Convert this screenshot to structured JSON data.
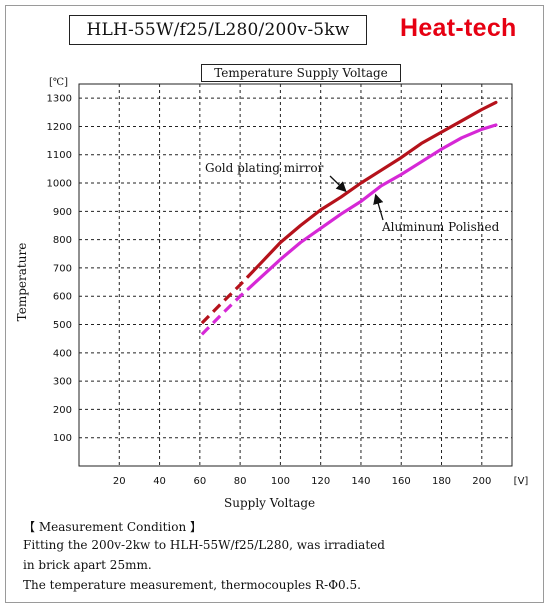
{
  "header": {
    "model": "HLH-55W/f25/L280/200v-5kw",
    "brand": "Heat-tech"
  },
  "chart_data": {
    "type": "line",
    "title": "Temperature Supply Voltage",
    "xlabel": "Supply Voltage",
    "ylabel": "Temperature",
    "y_unit": "[℃]",
    "x_unit": "[V]",
    "xlim": [
      0,
      215
    ],
    "ylim": [
      0,
      1350
    ],
    "x_ticks": [
      20,
      40,
      60,
      80,
      100,
      120,
      140,
      160,
      180,
      200
    ],
    "y_ticks": [
      100,
      200,
      300,
      400,
      500,
      600,
      700,
      800,
      900,
      1000,
      1100,
      1200,
      1300
    ],
    "grid": true,
    "series": [
      {
        "name": "Gold plating mirror",
        "color": "#b5121b",
        "dashed_until_x": 84,
        "x": [
          61,
          70,
          80,
          90,
          100,
          110,
          120,
          130,
          140,
          150,
          160,
          170,
          180,
          190,
          200,
          207
        ],
        "y": [
          505,
          570,
          640,
          715,
          790,
          850,
          905,
          950,
          1000,
          1045,
          1090,
          1140,
          1180,
          1220,
          1260,
          1285
        ]
      },
      {
        "name": "Aluminum Polished",
        "color": "#d628d6",
        "dashed_until_x": 84,
        "x": [
          61,
          70,
          80,
          90,
          100,
          110,
          120,
          130,
          140,
          150,
          160,
          170,
          180,
          190,
          200,
          207
        ],
        "y": [
          465,
          530,
          600,
          665,
          730,
          790,
          840,
          890,
          935,
          990,
          1030,
          1075,
          1120,
          1160,
          1190,
          1205
        ]
      }
    ]
  },
  "measurement": {
    "heading": "【  Measurement Condition  】",
    "lines": [
      "Fitting the 200v-2kw to HLH-55W/f25/L280, was irradiated",
      "in brick apart 25mm.",
      "The temperature measurement, thermocouples R-Φ0.5."
    ]
  }
}
